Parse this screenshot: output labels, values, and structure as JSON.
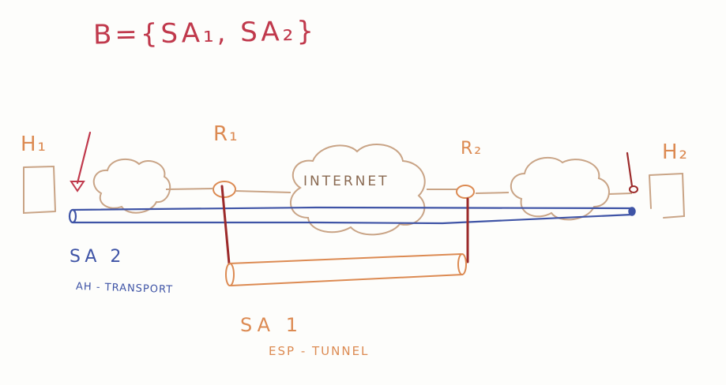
{
  "formula": "B={SA₁, SA₂}",
  "labels": {
    "h1": "H₁",
    "r1": "R₁",
    "r2": "R₂",
    "h2": "H₂",
    "internet": "INTERNET",
    "sa2": "SA 2",
    "sa2_mode": "AH - TRANSPORT",
    "sa1": "SA 1",
    "sa1_mode": "ESP - TUNNEL"
  },
  "colors": {
    "red_ink": "#c0394c",
    "orange_ink": "#dc8a52",
    "blue_ink": "#3f54a6",
    "dark_red_ink": "#9c2a2a",
    "sketch_ink": "#c9a486"
  }
}
